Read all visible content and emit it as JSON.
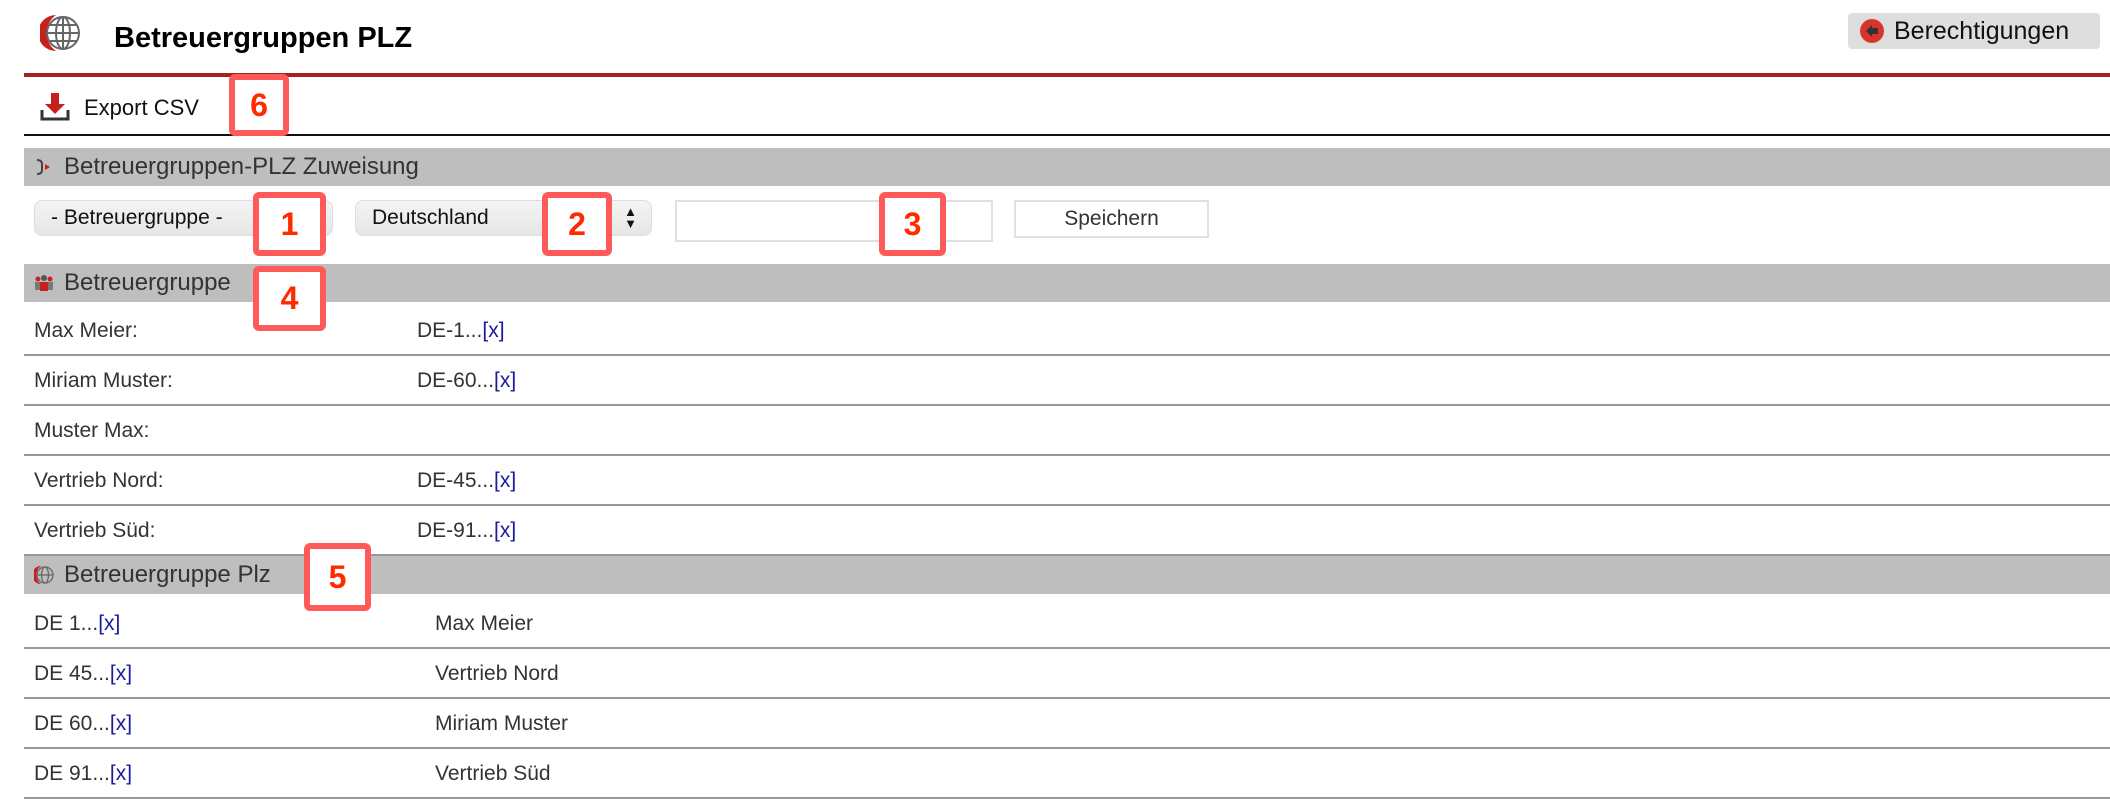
{
  "header": {
    "title": "Betreuergruppen PLZ",
    "permissions_label": "Berechtigungen",
    "logo_icon": "globe-icon"
  },
  "toolbar": {
    "export_label": "Export CSV",
    "export_icon": "download-icon"
  },
  "assignment": {
    "title": "Betreuergruppen-PLZ Zuweisung",
    "group_select": "- Betreuergruppe -",
    "country_select": "Deutschland",
    "plz_input_value": "",
    "save_label": "Speichern"
  },
  "groups": {
    "title": "Betreuergruppe",
    "rows": [
      {
        "name": "Max Meier:",
        "plz": "DE-1...",
        "remove": "[x]"
      },
      {
        "name": "Miriam Muster:",
        "plz": "DE-60...",
        "remove": "[x]"
      },
      {
        "name": "Muster Max:",
        "plz": "",
        "remove": ""
      },
      {
        "name": "Vertrieb Nord:",
        "plz": "DE-45...",
        "remove": "[x]"
      },
      {
        "name": "Vertrieb Süd:",
        "plz": "DE-91...",
        "remove": "[x]"
      }
    ]
  },
  "plz": {
    "title": "Betreuergruppe Plz",
    "rows": [
      {
        "plz": "DE 1...",
        "remove": "[x]",
        "group": "Max Meier"
      },
      {
        "plz": "DE 45...",
        "remove": "[x]",
        "group": "Vertrieb Nord"
      },
      {
        "plz": "DE 60...",
        "remove": "[x]",
        "group": "Miriam Muster"
      },
      {
        "plz": "DE 91...",
        "remove": "[x]",
        "group": "Vertrieb Süd"
      }
    ]
  },
  "annotations": [
    "1",
    "2",
    "3",
    "4",
    "5",
    "6"
  ],
  "colors": {
    "accent": "#a8221f",
    "section_bg": "#bfbebf",
    "link": "#1a1a9a",
    "annotation": "#ff5a5a"
  }
}
